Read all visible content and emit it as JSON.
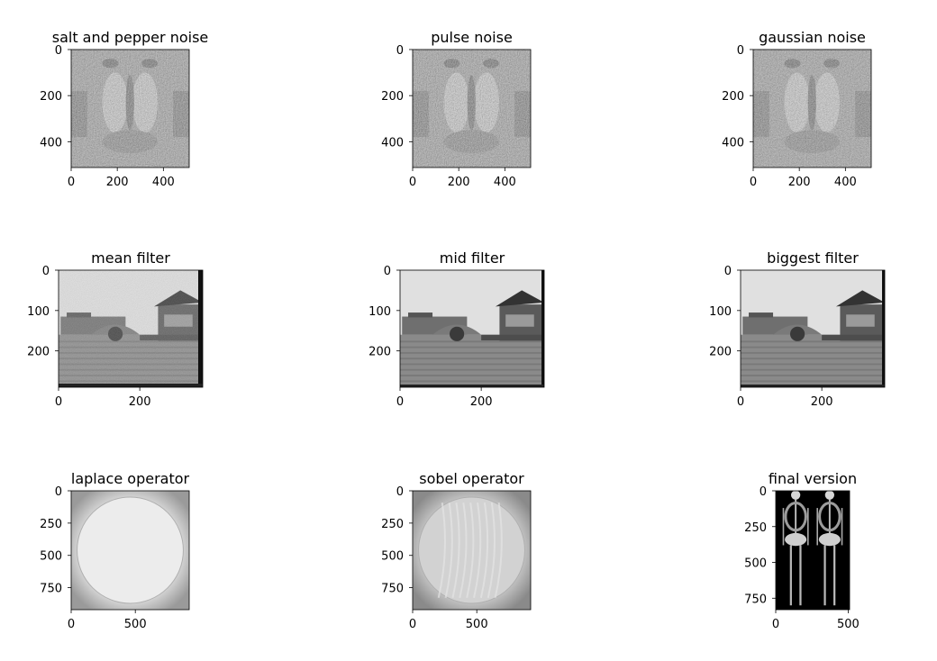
{
  "chart_data": [
    {
      "type": "image",
      "title": "salt and pepper noise",
      "xlim": [
        0,
        512
      ],
      "ylim": [
        512,
        0
      ],
      "xticks": [
        0,
        200,
        400
      ],
      "yticks": [
        0,
        200,
        400
      ],
      "content": "mandrill face, grayscale, heavy noise"
    },
    {
      "type": "image",
      "title": "pulse noise",
      "xlim": [
        0,
        512
      ],
      "ylim": [
        512,
        0
      ],
      "xticks": [
        0,
        200,
        400
      ],
      "yticks": [
        0,
        200,
        400
      ],
      "content": "mandrill face, grayscale, pulse noise"
    },
    {
      "type": "image",
      "title": "gaussian noise",
      "xlim": [
        0,
        512
      ],
      "ylim": [
        512,
        0
      ],
      "xticks": [
        0,
        200,
        400
      ],
      "yticks": [
        0,
        200,
        400
      ],
      "content": "mandrill face, grayscale, gaussian noise"
    },
    {
      "type": "image",
      "title": "mean filter",
      "xlim": [
        0,
        355
      ],
      "ylim": [
        290,
        0
      ],
      "xticks": [
        0,
        200
      ],
      "yticks": [
        0,
        100,
        200
      ],
      "content": "water town with bridge and pagoda, grayscale"
    },
    {
      "type": "image",
      "title": "mid filter",
      "xlim": [
        0,
        355
      ],
      "ylim": [
        290,
        0
      ],
      "xticks": [
        0,
        200
      ],
      "yticks": [
        0,
        100,
        200
      ],
      "content": "water town with bridge and pagoda, grayscale"
    },
    {
      "type": "image",
      "title": "biggest filter",
      "xlim": [
        0,
        355
      ],
      "ylim": [
        290,
        0
      ],
      "xticks": [
        0,
        200
      ],
      "yticks": [
        0,
        100,
        200
      ],
      "content": "water town with bridge and pagoda, grayscale"
    },
    {
      "type": "image",
      "title": "laplace operator",
      "xlim": [
        0,
        920
      ],
      "ylim": [
        920,
        0
      ],
      "xticks": [
        0,
        500
      ],
      "yticks": [
        0,
        250,
        500,
        750
      ],
      "content": "light gray circular dish on gray background"
    },
    {
      "type": "image",
      "title": "sobel operator",
      "xlim": [
        0,
        920
      ],
      "ylim": [
        920,
        0
      ],
      "xticks": [
        0,
        500
      ],
      "yticks": [
        0,
        250,
        500,
        750
      ],
      "content": "gray circular dish with streaks"
    },
    {
      "type": "image",
      "title": "final version",
      "xlim": [
        0,
        510
      ],
      "ylim": [
        830,
        0
      ],
      "xticks": [
        0,
        500
      ],
      "yticks": [
        0,
        250,
        500,
        750
      ],
      "content": "two full body skeleton x-ray scans on black"
    }
  ]
}
